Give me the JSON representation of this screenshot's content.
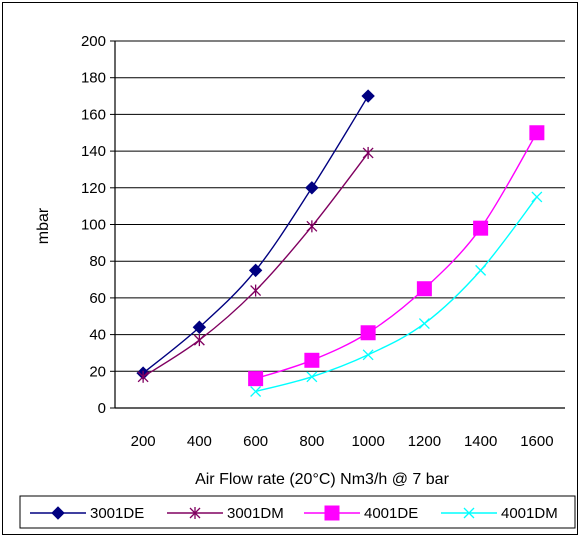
{
  "chart_data": {
    "type": "line",
    "title": "",
    "xlabel": "Air Flow rate (20°C) Nm3/h @ 7 bar",
    "ylabel": "mbar",
    "x_ticks": [
      "200",
      "400",
      "600",
      "800",
      "1000",
      "1200",
      "1400",
      "1600"
    ],
    "y_ticks": [
      "0",
      "20",
      "40",
      "60",
      "80",
      "100",
      "120",
      "140",
      "160",
      "180",
      "200"
    ],
    "xlim": [
      100,
      1700
    ],
    "ylim": [
      0,
      200
    ],
    "grid": "horizontal",
    "legend_position": "bottom",
    "series": [
      {
        "name": "3001DE",
        "color": "#000080",
        "marker": "diamond",
        "x": [
          200,
          400,
          600,
          800,
          1000
        ],
        "y": [
          19,
          44,
          75,
          120,
          170
        ]
      },
      {
        "name": "3001DM",
        "color": "#800060",
        "marker": "star",
        "x": [
          200,
          400,
          600,
          800,
          1000
        ],
        "y": [
          17,
          37,
          64,
          99,
          139
        ]
      },
      {
        "name": "4001DE",
        "color": "#ff00ff",
        "marker": "square",
        "x": [
          600,
          800,
          1000,
          1200,
          1400,
          1600
        ],
        "y": [
          16,
          26,
          41,
          65,
          98,
          150
        ]
      },
      {
        "name": "4001DM",
        "color": "#00ffff",
        "marker": "x",
        "x": [
          600,
          800,
          1000,
          1200,
          1400,
          1600
        ],
        "y": [
          9,
          17,
          29,
          46,
          75,
          115
        ]
      }
    ]
  }
}
